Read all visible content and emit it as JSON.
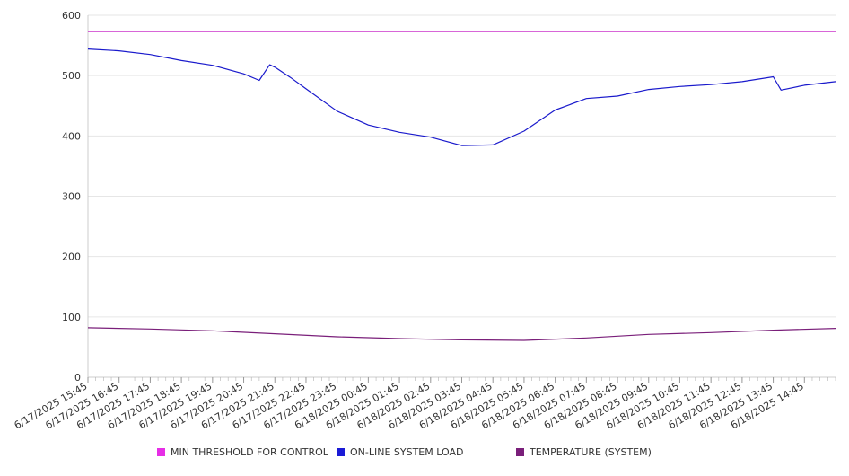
{
  "chart_data": {
    "type": "line",
    "title": "",
    "xlabel": "",
    "ylabel": "",
    "ylim": [
      0,
      600
    ],
    "yticks": [
      0,
      100,
      200,
      300,
      400,
      500,
      600
    ],
    "grid": true,
    "legend_position": "bottom",
    "x_tick_labels": [
      "6/17/2025 15:45",
      "6/17/2025 16:45",
      "6/17/2025 17:45",
      "6/17/2025 18:45",
      "6/17/2025 19:45",
      "6/17/2025 20:45",
      "6/17/2025 21:45",
      "6/17/2025 22:45",
      "6/17/2025 23:45",
      "6/18/2025 00:45",
      "6/18/2025 01:45",
      "6/18/2025 02:45",
      "6/18/2025 03:45",
      "6/18/2025 04:45",
      "6/18/2025 05:45",
      "6/18/2025 06:45",
      "6/18/2025 07:45",
      "6/18/2025 08:45",
      "6/18/2025 09:45",
      "6/18/2025 10:45",
      "6/18/2025 11:45",
      "6/18/2025 12:45",
      "6/18/2025 13:45",
      "6/18/2025 14:45"
    ],
    "x_start": "6/17/2025 15:45",
    "x_end": "6/18/2025 15:45",
    "series": [
      {
        "name": "MIN THRESHOLD FOR CONTROL",
        "color": "#cc33cc",
        "x": [
          "6/17/2025 15:45",
          "6/18/2025 15:45"
        ],
        "y": [
          573,
          573
        ]
      },
      {
        "name": "ON-LINE SYSTEM LOAD",
        "color": "#1a1acc",
        "x": [
          "6/17/2025 15:45",
          "6/17/2025 16:45",
          "6/17/2025 17:45",
          "6/17/2025 18:45",
          "6/17/2025 19:45",
          "6/17/2025 20:45",
          "6/17/2025 21:15",
          "6/17/2025 21:35",
          "6/17/2025 21:45",
          "6/17/2025 22:15",
          "6/17/2025 22:45",
          "6/17/2025 23:45",
          "6/18/2025 00:45",
          "6/18/2025 01:45",
          "6/18/2025 02:45",
          "6/18/2025 03:45",
          "6/18/2025 04:45",
          "6/18/2025 05:45",
          "6/18/2025 06:45",
          "6/18/2025 07:45",
          "6/18/2025 08:45",
          "6/18/2025 09:45",
          "6/18/2025 10:45",
          "6/18/2025 11:45",
          "6/18/2025 12:45",
          "6/18/2025 13:45",
          "6/18/2025 14:00",
          "6/18/2025 14:45",
          "6/18/2025 15:45"
        ],
        "y": [
          544,
          541,
          535,
          525,
          517,
          503,
          492,
          518,
          514,
          497,
          478,
          441,
          418,
          406,
          398,
          384,
          385,
          408,
          443,
          462,
          466,
          477,
          482,
          485,
          490,
          498,
          476,
          484,
          490
        ]
      },
      {
        "name": "TEMPERATURE (SYSTEM)",
        "color": "#7a1f7a",
        "x": [
          "6/17/2025 15:45",
          "6/17/2025 17:45",
          "6/17/2025 19:45",
          "6/17/2025 21:45",
          "6/17/2025 23:45",
          "6/18/2025 01:45",
          "6/18/2025 03:45",
          "6/18/2025 05:45",
          "6/18/2025 07:45",
          "6/18/2025 09:45",
          "6/18/2025 11:45",
          "6/18/2025 13:45",
          "6/18/2025 15:45"
        ],
        "y": [
          82,
          80,
          77,
          72,
          67,
          64,
          62,
          61,
          65,
          71,
          74,
          78,
          81
        ]
      }
    ]
  }
}
